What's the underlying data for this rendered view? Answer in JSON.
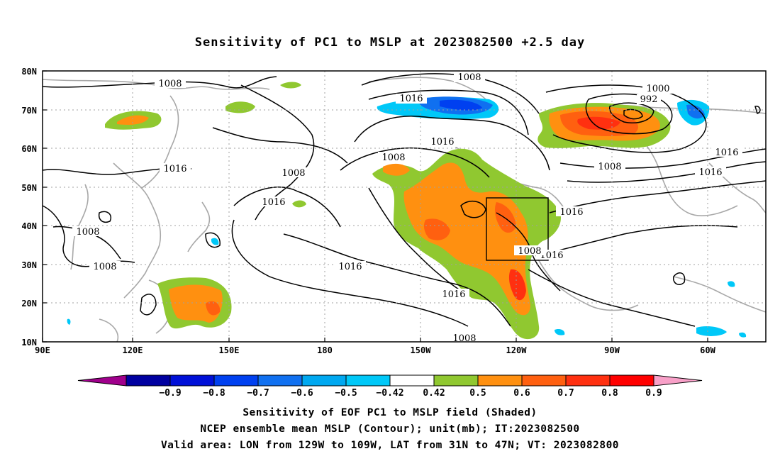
{
  "title": "Sensitivity of PC1 to MSLP at 2023082500 +2.5 day",
  "map": {
    "lat_ticks": [
      "80N",
      "70N",
      "60N",
      "50N",
      "40N",
      "30N",
      "20N",
      "10N"
    ],
    "lon_ticks": [
      "90E",
      "120E",
      "150E",
      "180",
      "150W",
      "120W",
      "90W",
      "60W"
    ],
    "region_box": {
      "lon": [
        "129W",
        "109W"
      ],
      "lat": [
        "31N",
        "47N"
      ]
    },
    "contour_labels": [
      "1008",
      "1016",
      "1008",
      "1016",
      "1000",
      "992",
      "1008",
      "1016",
      "1008",
      "1016",
      "1016",
      "1016",
      "1008",
      "1008",
      "1016",
      "1016",
      "1008",
      "1016",
      "1008",
      "1016",
      "1008"
    ]
  },
  "colorbar": {
    "labels": [
      "-0.9",
      "-0.8",
      "-0.7",
      "-0.6",
      "-0.5",
      "-0.42",
      "0.42",
      "0.5",
      "0.6",
      "0.7",
      "0.8",
      "0.9"
    ],
    "colors": [
      "#a0008c",
      "#0000a0",
      "#0010d8",
      "#0040f0",
      "#1070f0",
      "#00a8f0",
      "#00c8f8",
      "#ffffff",
      "#90c830",
      "#ff9010",
      "#ff6010",
      "#ff3010",
      "#ff0000",
      "#f8a0c8"
    ]
  },
  "captions": {
    "line1": "Sensitivity of EOF PC1 to MSLP field (Shaded)",
    "line2": "NCEP ensemble mean MSLP (Contour); unit(mb); IT:2023082500",
    "line3": "Valid area: LON from 129W to 109W, LAT from 31N to 47N; VT: 2023082800"
  }
}
